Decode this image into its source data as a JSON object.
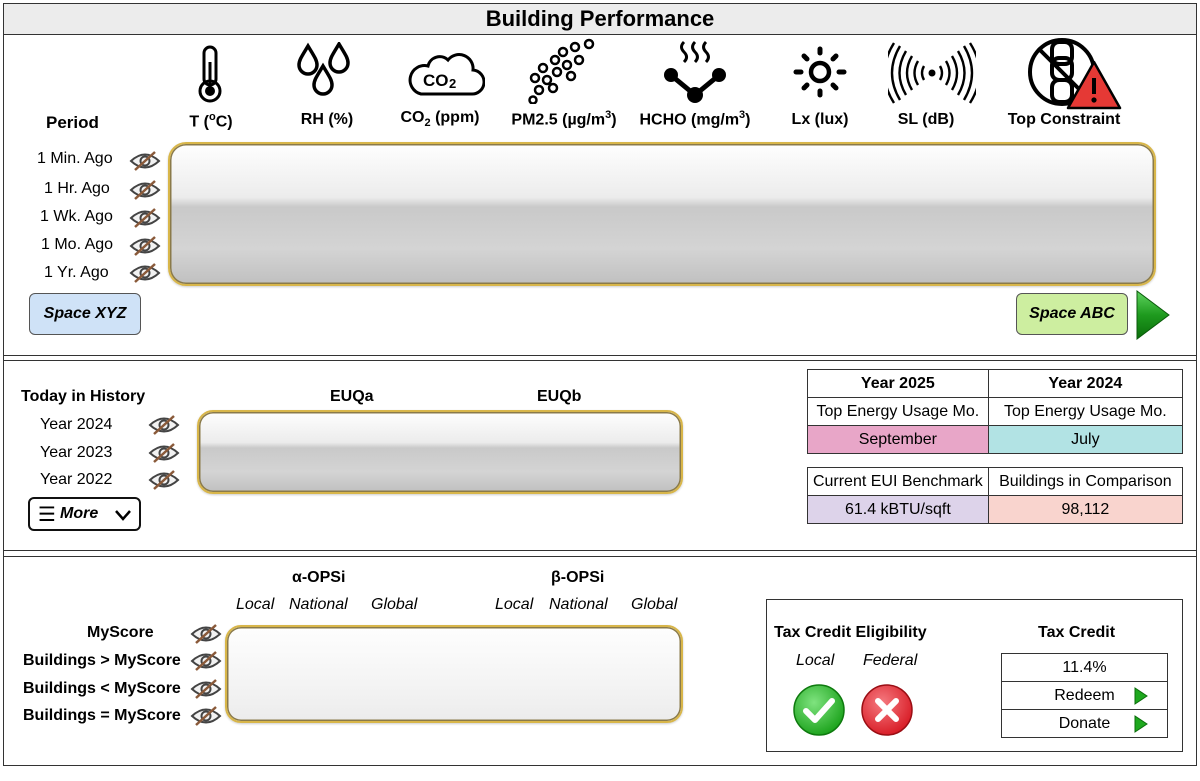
{
  "title": "Building Performance",
  "section1": {
    "period_label": "Period",
    "metrics": [
      {
        "icon": "thermometer-icon",
        "label": "T (",
        "sup": "o",
        "label_after": "C)"
      },
      {
        "icon": "humidity-drops-icon",
        "label": "RH (%)"
      },
      {
        "icon": "co2-cloud-icon",
        "label": "CO",
        "sub": "2",
        "label_after": " (ppm)",
        "icon_text": "CO2"
      },
      {
        "icon": "particles-icon",
        "label": "PM2.5 (µg/m",
        "sup": "3",
        "label_after": ")"
      },
      {
        "icon": "formaldehyde-molecule-icon",
        "label": "HCHO (mg/m",
        "sup": "3",
        "label_after": ")"
      },
      {
        "icon": "sun-icon",
        "label": "Lx (lux)"
      },
      {
        "icon": "sound-waves-icon",
        "label": "SL (dB)"
      },
      {
        "icon": "chain-warning-icon",
        "label": "Top Constraint"
      }
    ],
    "periods": [
      "1 Min. Ago",
      "1 Hr. Ago",
      "1 Wk. Ago",
      "1 Mo. Ago",
      "1 Yr. Ago"
    ],
    "space_left_button": "Space XYZ",
    "space_right_button": "Space ABC"
  },
  "section2": {
    "history_title": "Today in History",
    "years": [
      "Year 2024",
      "Year 2023",
      "Year 2022"
    ],
    "more_button": "More",
    "col_a": "EUQa",
    "col_b": "EUQb",
    "table1": {
      "headers": [
        "Year 2025",
        "Year 2024"
      ],
      "row_label": [
        "Top Energy Usage Mo.",
        "Top Energy Usage Mo."
      ],
      "values": [
        "September",
        "July"
      ]
    },
    "table2": {
      "headers": [
        "Current EUI Benchmark",
        "Buildings in Comparison"
      ],
      "values": [
        "61.4 kBTU/sqft",
        "98,112"
      ]
    }
  },
  "section3": {
    "alpha_title": "α-OPSi",
    "beta_title": "β-OPSi",
    "scopes": [
      "Local",
      "National",
      "Global"
    ],
    "rows": [
      "MyScore",
      "Buildings > MyScore",
      "Buildings < MyScore",
      "Buildings = MyScore"
    ],
    "tax_eligibility_title": "Tax Credit Eligibility",
    "tax_local": "Local",
    "tax_federal": "Federal",
    "tax_credit_title": "Tax Credit",
    "tax_credit_value": "11.4%",
    "redeem": "Redeem",
    "donate": "Donate"
  },
  "colors": {
    "september_cell": "#e8a6c8",
    "july_cell": "#b2e3e4",
    "benchmark_cell": "#ddd3ea",
    "comparison_cell": "#f9d4ce",
    "space_xyz": "#cfe2f7",
    "space_abc": "#cdeea0",
    "glass_border": "#d8b64a",
    "check_green": "#22b022",
    "cross_red": "#e0202e"
  }
}
